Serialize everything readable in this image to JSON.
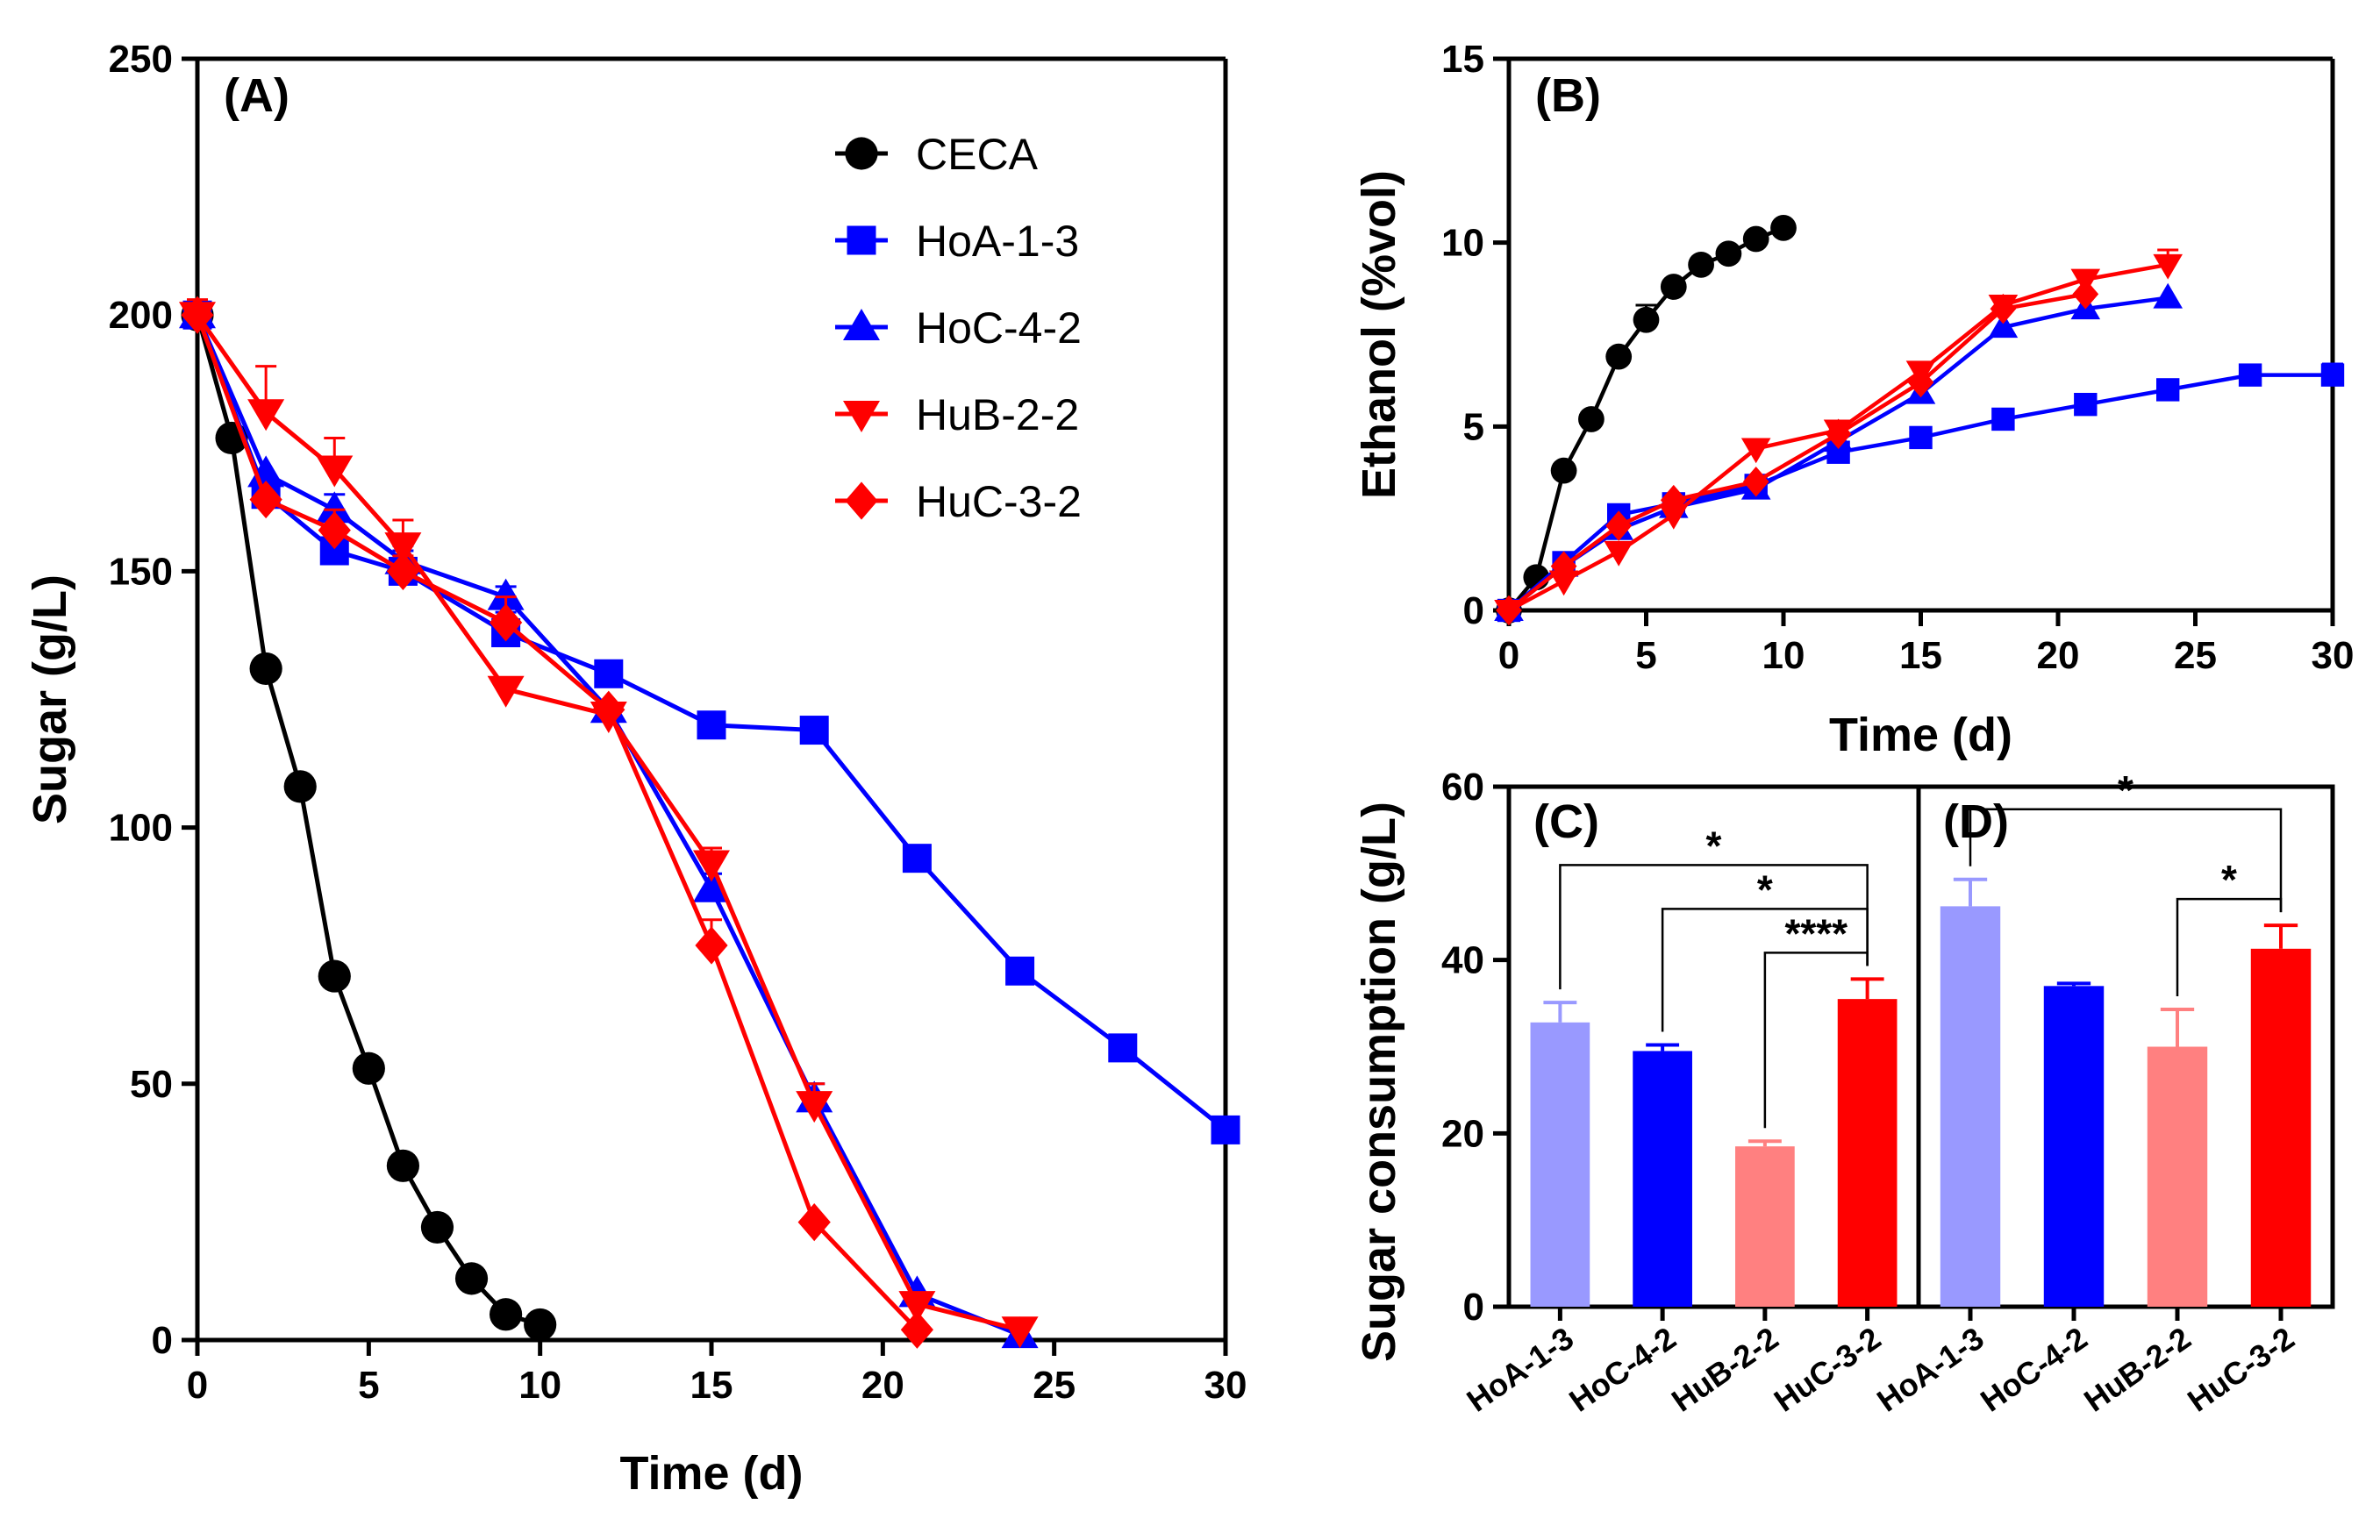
{
  "chart_data": [
    {
      "id": "A",
      "type": "line",
      "panel_label": "(A)",
      "xlabel": "Time (d)",
      "ylabel": "Sugar (g/L)",
      "xlim": [
        0,
        30
      ],
      "ylim": [
        0,
        250
      ],
      "xticks": [
        0,
        5,
        10,
        15,
        20,
        25,
        30
      ],
      "yticks": [
        0,
        50,
        100,
        150,
        200,
        250
      ],
      "legend_position": "top-right",
      "series": [
        {
          "name": "CECA",
          "color": "#000000",
          "marker": "circle",
          "x": [
            0,
            1,
            2,
            3,
            4,
            5,
            6,
            7,
            8,
            9,
            10
          ],
          "y": [
            200,
            176,
            131,
            108,
            71,
            53,
            34,
            22,
            12,
            5,
            3
          ],
          "err": [
            0,
            0,
            0,
            0,
            0,
            0,
            0,
            0,
            0,
            0,
            0
          ]
        },
        {
          "name": "HoA-1-3",
          "color": "#0000ff",
          "marker": "square",
          "x": [
            0,
            2,
            4,
            6,
            9,
            12,
            15,
            18,
            21,
            24,
            27,
            30
          ],
          "y": [
            200,
            165,
            154,
            150,
            138,
            130,
            120,
            119,
            94,
            72,
            57,
            41
          ],
          "err": [
            0,
            3,
            5,
            4,
            4,
            0,
            0,
            0,
            0,
            0,
            0,
            0
          ]
        },
        {
          "name": "HoC-4-2",
          "color": "#0000ff",
          "marker": "triangle-up",
          "x": [
            0,
            2,
            4,
            6,
            9,
            12,
            15,
            18,
            21,
            24
          ],
          "y": [
            200,
            169,
            162,
            152,
            145,
            123,
            88,
            47,
            9,
            1
          ],
          "err": [
            0,
            0,
            3,
            3,
            2,
            0,
            3,
            3,
            0,
            0
          ]
        },
        {
          "name": "HuB-2-2",
          "color": "#ff0000",
          "marker": "triangle-down",
          "x": [
            0,
            2,
            4,
            6,
            9,
            12,
            15,
            18,
            21,
            24
          ],
          "y": [
            200,
            181,
            170,
            155,
            127,
            122,
            93,
            46,
            7,
            2
          ],
          "err": [
            3,
            9,
            6,
            5,
            0,
            2,
            3,
            4,
            0,
            0
          ]
        },
        {
          "name": "HuC-3-2",
          "color": "#ff0000",
          "marker": "diamond",
          "x": [
            0,
            2,
            4,
            6,
            9,
            12,
            15,
            18,
            21
          ],
          "y": [
            200,
            164,
            158,
            150,
            140,
            123,
            77,
            23,
            2
          ],
          "err": [
            0,
            0,
            4,
            3,
            5,
            0,
            5,
            0,
            0
          ]
        }
      ]
    },
    {
      "id": "B",
      "type": "line",
      "panel_label": "(B)",
      "xlabel": "Time (d)",
      "ylabel": "Ethanol (%vol)",
      "xlim": [
        0,
        30
      ],
      "ylim": [
        0,
        15
      ],
      "xticks": [
        0,
        5,
        10,
        15,
        20,
        25,
        30
      ],
      "yticks": [
        0,
        5,
        10,
        15
      ],
      "series": [
        {
          "name": "CECA",
          "color": "#000000",
          "marker": "circle",
          "x": [
            0,
            1,
            2,
            3,
            4,
            5,
            6,
            7,
            8,
            9,
            10
          ],
          "y": [
            0,
            0.9,
            3.8,
            5.2,
            6.9,
            7.9,
            8.8,
            9.4,
            9.7,
            10.1,
            10.4
          ],
          "err": [
            0,
            0,
            0,
            0,
            0,
            0.4,
            0,
            0,
            0,
            0,
            0
          ]
        },
        {
          "name": "HoA-1-3",
          "color": "#0000ff",
          "marker": "square",
          "x": [
            0,
            2,
            4,
            6,
            9,
            12,
            15,
            18,
            21,
            24,
            27,
            30
          ],
          "y": [
            0,
            1.3,
            2.6,
            2.9,
            3.4,
            4.3,
            4.7,
            5.2,
            5.6,
            6.0,
            6.4,
            6.4
          ],
          "err": [
            0,
            0,
            0,
            0,
            0,
            0,
            0,
            0,
            0,
            0,
            0,
            0.3
          ]
        },
        {
          "name": "HoC-4-2",
          "color": "#0000ff",
          "marker": "triangle-up",
          "x": [
            0,
            2,
            4,
            6,
            9,
            12,
            15,
            18,
            21,
            24
          ],
          "y": [
            0,
            1.2,
            2.2,
            2.8,
            3.3,
            4.6,
            5.9,
            7.7,
            8.2,
            8.5
          ],
          "err": [
            0,
            0,
            0,
            0,
            0,
            0,
            0,
            0,
            0,
            0
          ]
        },
        {
          "name": "HuB-2-2",
          "color": "#ff0000",
          "marker": "triangle-down",
          "x": [
            0,
            2,
            4,
            6,
            9,
            12,
            15,
            18,
            21,
            24
          ],
          "y": [
            0,
            0.8,
            1.6,
            2.6,
            4.4,
            4.9,
            6.5,
            8.3,
            9.0,
            9.4
          ],
          "err": [
            0,
            0,
            0,
            0,
            0,
            0,
            0,
            0,
            0,
            0.4
          ]
        },
        {
          "name": "HuC-3-2",
          "color": "#ff0000",
          "marker": "diamond",
          "x": [
            0,
            2,
            4,
            6,
            9,
            12,
            15,
            18,
            21
          ],
          "y": [
            0,
            1.2,
            2.3,
            3.0,
            3.5,
            4.8,
            6.2,
            8.2,
            8.6
          ],
          "err": [
            0,
            0,
            0,
            0,
            0,
            0,
            0,
            0,
            0
          ]
        }
      ]
    },
    {
      "id": "C",
      "type": "bar",
      "panel_label": "(C)",
      "ylabel": "Sugar consumption (g/L)",
      "ylim": [
        0,
        60
      ],
      "yticks": [
        0,
        20,
        40,
        60
      ],
      "categories": [
        "HoA-1-3",
        "HoC-4-2",
        "HuB-2-2",
        "HuC-3-2"
      ],
      "values": [
        32.8,
        29.5,
        18.5,
        35.5
      ],
      "errors": [
        2.3,
        0.7,
        0.6,
        2.3
      ],
      "colors": [
        "#9999ff",
        "#0000ff",
        "#ff8080",
        "#ff0000"
      ],
      "significance": [
        {
          "from": 0,
          "to": 3,
          "label": "*"
        },
        {
          "from": 1,
          "to": 3,
          "label": "*"
        },
        {
          "from": 2,
          "to": 3,
          "label": "****"
        }
      ]
    },
    {
      "id": "D",
      "type": "bar",
      "panel_label": "(D)",
      "ylim": [
        0,
        60
      ],
      "categories": [
        "HoA-1-3",
        "HoC-4-2",
        "HuB-2-2",
        "HuC-3-2"
      ],
      "values": [
        46.2,
        37.0,
        30.0,
        41.3
      ],
      "errors": [
        3.1,
        0.3,
        4.3,
        2.7
      ],
      "colors": [
        "#9999ff",
        "#0000ff",
        "#ff8080",
        "#ff0000"
      ],
      "significance": [
        {
          "from": 0,
          "to": 3,
          "label": "*"
        },
        {
          "from": 2,
          "to": 3,
          "label": "*"
        }
      ]
    }
  ]
}
